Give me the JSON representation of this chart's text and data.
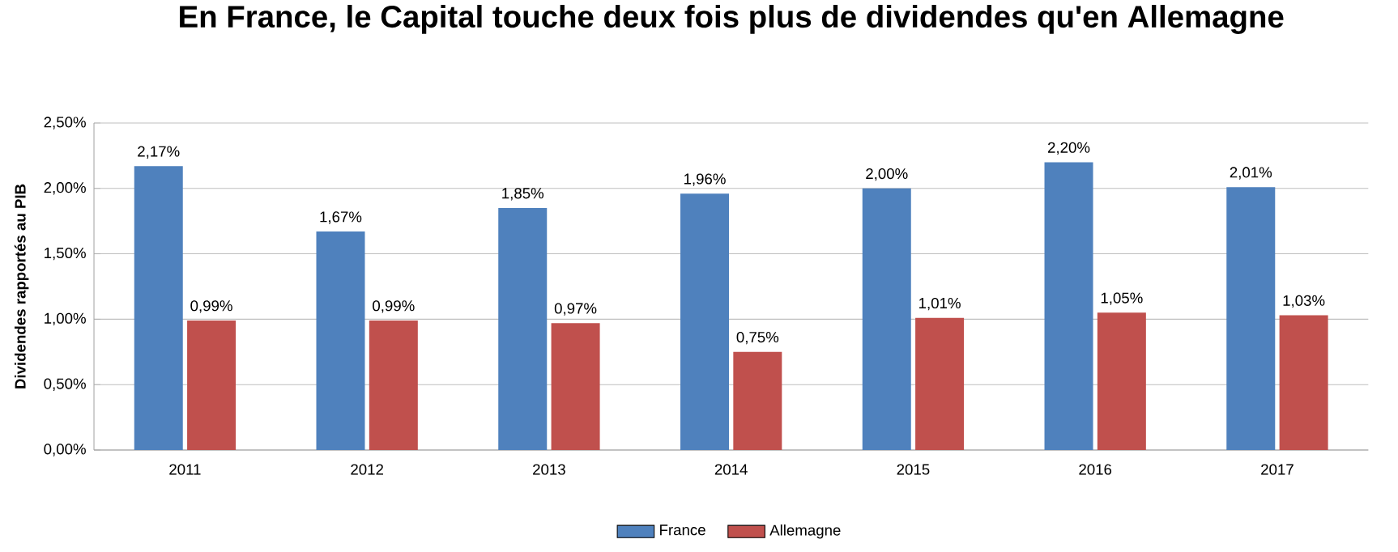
{
  "chart_data": {
    "type": "bar",
    "title": "En France, le Capital touche deux fois plus de dividendes qu'en Allemagne",
    "ylabel": "Dividendes rapportés au PIB",
    "categories": [
      "2011",
      "2012",
      "2013",
      "2014",
      "2015",
      "2016",
      "2017"
    ],
    "series": [
      {
        "name": "France",
        "color": "#4f81bd",
        "values": [
          2.17,
          1.67,
          1.85,
          1.96,
          2.0,
          2.2,
          2.01
        ],
        "value_labels": [
          "2,17%",
          "1,67%",
          "1,85%",
          "1,96%",
          "2,00%",
          "2,20%",
          "2,01%"
        ]
      },
      {
        "name": "Allemagne",
        "color": "#c0504d",
        "values": [
          0.99,
          0.99,
          0.97,
          0.75,
          1.01,
          1.05,
          1.03
        ],
        "value_labels": [
          "0,99%",
          "0,99%",
          "0,97%",
          "0,75%",
          "1,01%",
          "1,05%",
          "1,03%"
        ]
      }
    ],
    "ylim": [
      0,
      2.5
    ],
    "yticks": [
      {
        "value": 0,
        "label": "0,00%"
      },
      {
        "value": 0.5,
        "label": "0,50%"
      },
      {
        "value": 1,
        "label": "1,00%"
      },
      {
        "value": 1.5,
        "label": "1,50%"
      },
      {
        "value": 2,
        "label": "2,00%"
      },
      {
        "value": 2.5,
        "label": "2,50%"
      }
    ],
    "grid": "y",
    "legend": "bottom"
  }
}
